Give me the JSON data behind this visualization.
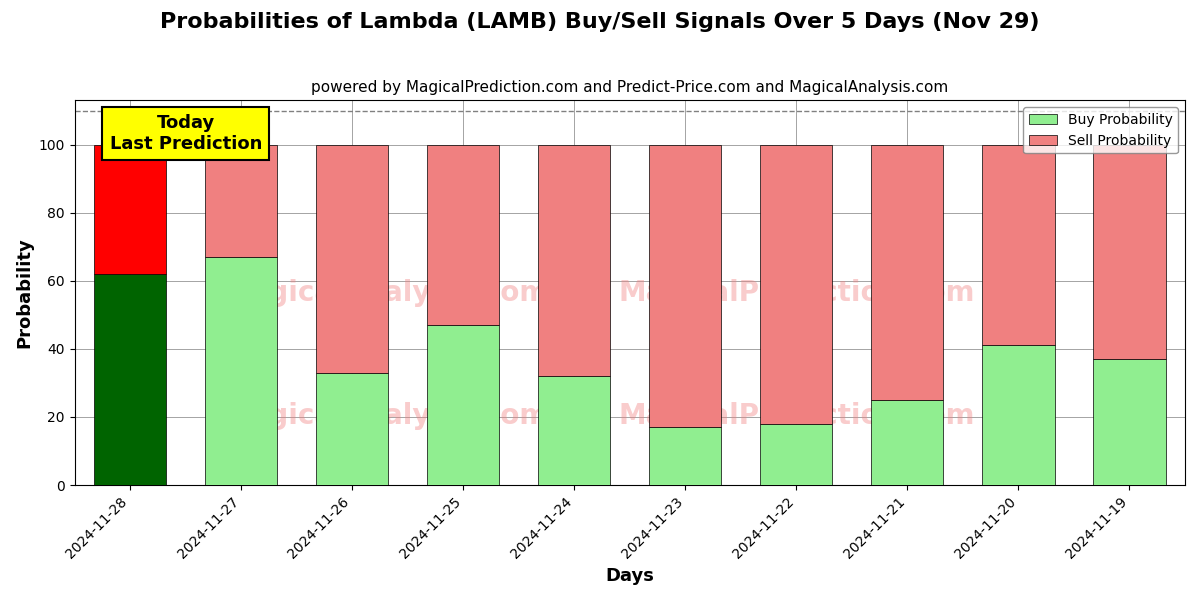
{
  "title": "Probabilities of Lambda (LAMB) Buy/Sell Signals Over 5 Days (Nov 29)",
  "subtitle": "powered by MagicalPrediction.com and Predict-Price.com and MagicalAnalysis.com",
  "xlabel": "Days",
  "ylabel": "Probability",
  "dates": [
    "2024-11-28",
    "2024-11-27",
    "2024-11-26",
    "2024-11-25",
    "2024-11-24",
    "2024-11-23",
    "2024-11-22",
    "2024-11-21",
    "2024-11-20",
    "2024-11-19"
  ],
  "buy_values": [
    62,
    67,
    33,
    47,
    32,
    17,
    18,
    25,
    41,
    37
  ],
  "sell_values": [
    38,
    33,
    67,
    53,
    68,
    83,
    82,
    75,
    59,
    63
  ],
  "today_buy_color": "#006400",
  "today_sell_color": "#FF0000",
  "buy_color": "#90EE90",
  "sell_color": "#F08080",
  "today_annotation": "Today\nLast Prediction",
  "annotation_bg_color": "#FFFF00",
  "ylim": [
    0,
    113
  ],
  "dashed_line_y": 110,
  "legend_buy_label": "Buy Probability",
  "legend_sell_label": "Sell Probability",
  "title_fontsize": 16,
  "subtitle_fontsize": 11,
  "axis_label_fontsize": 13,
  "tick_fontsize": 10,
  "bar_width": 0.65
}
